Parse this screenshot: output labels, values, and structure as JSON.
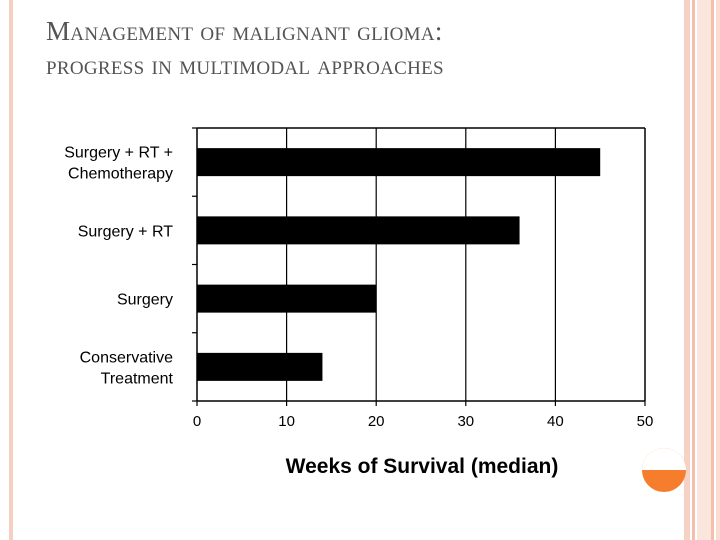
{
  "slide": {
    "title_line1": "Management of malignant glioma:",
    "title_line2": "progress in multimodal approaches"
  },
  "chart_data": {
    "type": "bar",
    "orientation": "horizontal",
    "categories": [
      [
        "Surgery + RT +",
        "Chemotherapy"
      ],
      [
        "Surgery + RT"
      ],
      [
        "Surgery"
      ],
      [
        "Conservative",
        "Treatment"
      ]
    ],
    "values": [
      45,
      36,
      20,
      14
    ],
    "xlabel": "Weeks of Survival (median)",
    "ylabel": "",
    "xlim": [
      0,
      50
    ],
    "xticks": [
      0,
      10,
      20,
      30,
      40,
      50
    ],
    "grid": true,
    "bar_color": "#000000"
  },
  "colors": {
    "accent": "#f57d2c",
    "title": "#545454"
  }
}
